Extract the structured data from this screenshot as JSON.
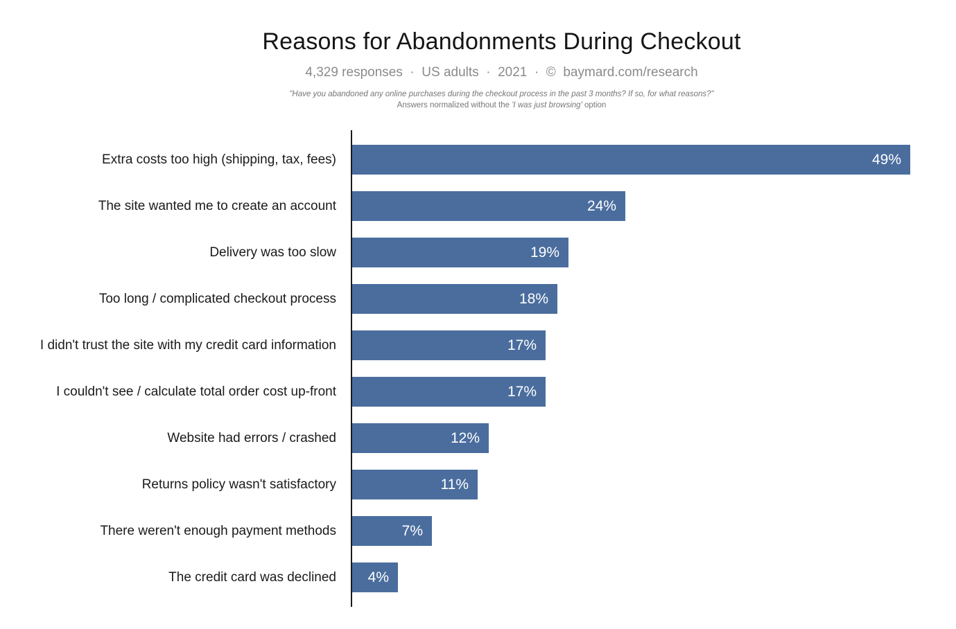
{
  "chart_data": {
    "type": "bar",
    "orientation": "horizontal",
    "title": "Reasons for Abandonments During Checkout",
    "subtitle": "4,329 responses  ·  US adults  ·  2021  ·  ©  baymard.com/research",
    "annotations": {
      "survey_question": "\"Have you abandoned any online purchases during the checkout process in the past 3 months? If so, for what reasons?\"",
      "note_prefix": "Answers normalized without the ",
      "note_italic": "'I was just browsing'",
      "note_suffix": " option"
    },
    "categories": [
      "Extra costs too high (shipping, tax, fees)",
      "The site wanted me to create an account",
      "Delivery was too slow",
      "Too long / complicated checkout process",
      "I didn't trust the site with my credit card information",
      "I couldn't see / calculate total order cost up-front",
      "Website had errors / crashed",
      "Returns policy wasn't satisfactory",
      "There weren't enough payment methods",
      "The credit card was declined"
    ],
    "values": [
      49,
      24,
      19,
      18,
      17,
      17,
      12,
      11,
      7,
      4
    ],
    "value_suffix": "%",
    "xlim": [
      0,
      49
    ],
    "grid": false,
    "legend": false,
    "colors": {
      "bar": "#4A6D9E",
      "value_label": "#FFFFFF",
      "axis": "#1A1A1A",
      "title": "#151515",
      "subtitle": "#8A8A8A",
      "footnote": "#767676",
      "category_label": "#1A1A1A",
      "background": "#FFFFFF"
    }
  }
}
